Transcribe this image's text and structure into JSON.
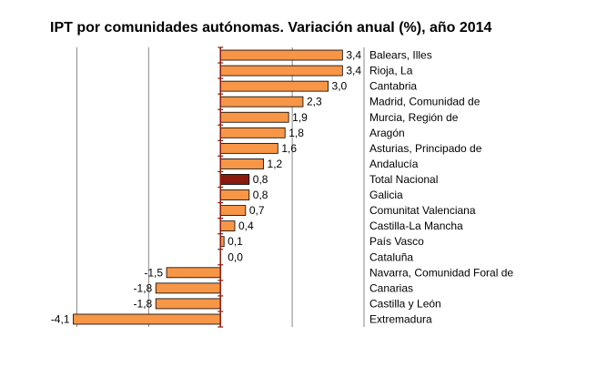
{
  "chart_data": {
    "type": "bar",
    "orientation": "horizontal",
    "title": "IPT por comunidades autónomas. Variación anual (%), año 2014",
    "xlabel": "",
    "ylabel": "",
    "xlim": [
      -5,
      4
    ],
    "grid": true,
    "legend": "none",
    "colors": {
      "bar": "#f79646",
      "highlight": "#8b1a0e",
      "axis": "#8b1a0e",
      "grid": "#888888",
      "edge": "#000000"
    },
    "categories": [
      "Balears, Illes",
      "Rioja, La",
      "Cantabria",
      "Madrid, Comunidad de",
      "Murcia, Región de",
      "Aragón",
      "Asturias, Principado de",
      "Andalucía",
      "Total Nacional",
      "Galicia",
      "Comunitat Valenciana",
      "Castilla-La Mancha",
      "País Vasco",
      "Cataluña",
      "Navarra, Comunidad Foral de",
      "Canarias",
      "Castilla y León",
      "Extremadura"
    ],
    "values": [
      3.4,
      3.4,
      3.0,
      2.3,
      1.9,
      1.8,
      1.6,
      1.2,
      0.8,
      0.8,
      0.7,
      0.4,
      0.1,
      0.0,
      -1.5,
      -1.8,
      -1.8,
      -4.1
    ],
    "value_labels": [
      "3,4",
      "3,4",
      "3,0",
      "2,3",
      "1,9",
      "1,8",
      "1,6",
      "1,2",
      "0,8",
      "0,8",
      "0,7",
      "0,4",
      "0,1",
      "0,0",
      "-1,5",
      "-1,8",
      "-1,8",
      "-4,1"
    ],
    "highlight_category": "Total Nacional"
  }
}
